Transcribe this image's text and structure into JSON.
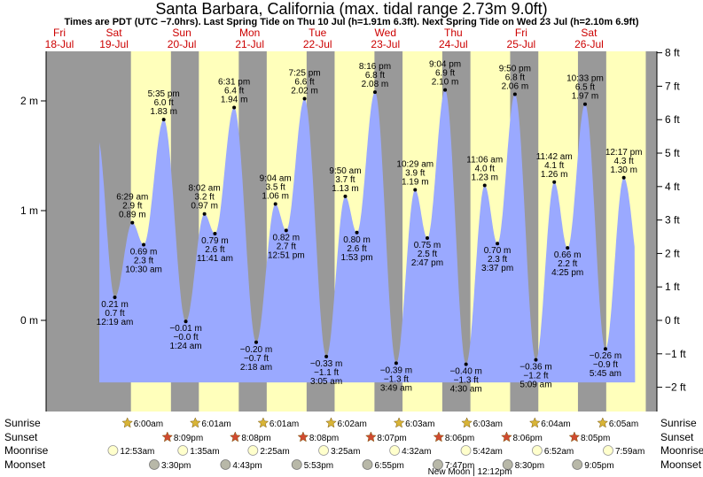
{
  "title": "Santa Barbara, California (max. tidal range 2.73m 9.0ft)",
  "subtitle": "Times are PDT (UTC −7.0hrs). Last Spring Tide on Thu 10 Jul (h=1.91m 6.3ft). Next Spring Tide on Wed 23 Jul (h=2.10m 6.9ft)",
  "colors": {
    "night": "#999999",
    "day": "#ffffbb",
    "water": "#9aa9ff",
    "date_label": "#cc0000",
    "sun_icon": "#d8b437",
    "sunset_icon": "#d04a30",
    "moonrise_icon": "#ffffcc",
    "moonset_icon": "#b8b8a8"
  },
  "row_labels": {
    "sunrise": "Sunrise",
    "sunset": "Sunset",
    "moonrise": "Moonrise",
    "moonset": "Moonset"
  },
  "moon_phase_note": "New Moon | 12:12pm",
  "chart_data": {
    "type": "area",
    "title": "Santa Barbara, California (max. tidal range 2.73m 9.0ft)",
    "y_left_unit": "m",
    "y_left_ticks": [
      "2 m",
      "1 m",
      "0 m"
    ],
    "y_right_ticks": [
      "8 ft",
      "7 ft",
      "6 ft",
      "5 ft",
      "4 ft",
      "3 ft",
      "2 ft",
      "1 ft",
      "0 ft",
      "−1 ft",
      "−2 ft"
    ],
    "y_right_values": [
      8,
      7,
      6,
      5,
      4,
      3,
      2,
      1,
      0,
      -1,
      -2
    ],
    "ylim_m": [
      -0.8,
      2.5
    ],
    "x_unit": "hours since 18-Jul 00:00 PDT",
    "xlim_hours": [
      0,
      216
    ],
    "days": [
      {
        "dow": "Fri",
        "date": "18-Jul"
      },
      {
        "dow": "Sat",
        "date": "19-Jul"
      },
      {
        "dow": "Sun",
        "date": "20-Jul"
      },
      {
        "dow": "Mon",
        "date": "21-Jul"
      },
      {
        "dow": "Tue",
        "date": "22-Jul"
      },
      {
        "dow": "Wed",
        "date": "23-Jul"
      },
      {
        "dow": "Thu",
        "date": "24-Jul"
      },
      {
        "dow": "Fri",
        "date": "25-Jul"
      },
      {
        "dow": "Sat",
        "date": "26-Jul"
      }
    ],
    "series": [
      {
        "points": [
          {
            "time": "19-Jul 00:19",
            "t": 24.3,
            "m": 0.21,
            "label": [
              "0.21 m",
              "0.7 ft",
              "12:19 am"
            ],
            "pos": "below"
          },
          {
            "time": "19-Jul 06:29",
            "t": 30.5,
            "m": 0.89,
            "label": [
              "6:29 am",
              "2.9 ft",
              "0.89 m"
            ],
            "pos": "above"
          },
          {
            "time": "19-Jul 10:30",
            "t": 34.5,
            "m": 0.69,
            "label": [
              "0.69 m",
              "2.3 ft",
              "10:30 am"
            ],
            "pos": "below"
          },
          {
            "time": "19-Jul 17:35",
            "t": 41.6,
            "m": 1.83,
            "label": [
              "5:35 pm",
              "6.0 ft",
              "1.83 m"
            ],
            "pos": "above"
          },
          {
            "time": "20-Jul 01:24",
            "t": 49.4,
            "m": -0.01,
            "label": [
              "−0.01 m",
              "−0.0 ft",
              "1:24 am"
            ],
            "pos": "below"
          },
          {
            "time": "20-Jul 08:02",
            "t": 56.0,
            "m": 0.97,
            "label": [
              "8:02 am",
              "3.2 ft",
              "0.97 m"
            ],
            "pos": "above"
          },
          {
            "time": "20-Jul 11:41",
            "t": 59.7,
            "m": 0.79,
            "label": [
              "0.79 m",
              "2.6 ft",
              "11:41 am"
            ],
            "pos": "below"
          },
          {
            "time": "20-Jul 18:31",
            "t": 66.5,
            "m": 1.94,
            "label": [
              "6:31 pm",
              "6.4 ft",
              "1.94 m"
            ],
            "pos": "above"
          },
          {
            "time": "21-Jul 02:18",
            "t": 74.3,
            "m": -0.2,
            "label": [
              "−0.20 m",
              "−0.7 ft",
              "2:18 am"
            ],
            "pos": "below"
          },
          {
            "time": "21-Jul 09:04",
            "t": 81.1,
            "m": 1.06,
            "label": [
              "9:04 am",
              "3.5 ft",
              "1.06 m"
            ],
            "pos": "above"
          },
          {
            "time": "21-Jul 12:51",
            "t": 84.9,
            "m": 0.82,
            "label": [
              "0.82 m",
              "2.7 ft",
              "12:51 pm"
            ],
            "pos": "below"
          },
          {
            "time": "21-Jul 19:25",
            "t": 91.4,
            "m": 2.02,
            "label": [
              "7:25 pm",
              "6.6 ft",
              "2.02 m"
            ],
            "pos": "above"
          },
          {
            "time": "22-Jul 03:05",
            "t": 99.1,
            "m": -0.33,
            "label": [
              "−0.33 m",
              "−1.1 ft",
              "3:05 am"
            ],
            "pos": "below"
          },
          {
            "time": "22-Jul 09:50",
            "t": 105.8,
            "m": 1.13,
            "label": [
              "9:50 am",
              "3.7 ft",
              "1.13 m"
            ],
            "pos": "above"
          },
          {
            "time": "22-Jul 13:53",
            "t": 109.9,
            "m": 0.8,
            "label": [
              "0.80 m",
              "2.6 ft",
              "1:53 pm"
            ],
            "pos": "below"
          },
          {
            "time": "22-Jul 20:16",
            "t": 116.3,
            "m": 2.08,
            "label": [
              "8:16 pm",
              "6.8 ft",
              "2.08 m"
            ],
            "pos": "above"
          },
          {
            "time": "23-Jul 03:49",
            "t": 123.8,
            "m": -0.39,
            "label": [
              "−0.39 m",
              "−1.3 ft",
              "3:49 am"
            ],
            "pos": "below"
          },
          {
            "time": "23-Jul 10:29",
            "t": 130.5,
            "m": 1.19,
            "label": [
              "10:29 am",
              "3.9 ft",
              "1.19 m"
            ],
            "pos": "above"
          },
          {
            "time": "23-Jul 14:47",
            "t": 134.8,
            "m": 0.75,
            "label": [
              "0.75 m",
              "2.5 ft",
              "2:47 pm"
            ],
            "pos": "below"
          },
          {
            "time": "23-Jul 21:04",
            "t": 141.1,
            "m": 2.1,
            "label": [
              "9:04 pm",
              "6.9 ft",
              "2.10 m"
            ],
            "pos": "above"
          },
          {
            "time": "24-Jul 04:30",
            "t": 148.5,
            "m": -0.4,
            "label": [
              "−0.40 m",
              "−1.3 ft",
              "4:30 am"
            ],
            "pos": "below"
          },
          {
            "time": "24-Jul 11:06",
            "t": 155.1,
            "m": 1.23,
            "label": [
              "11:06 am",
              "4.0 ft",
              "1.23 m"
            ],
            "pos": "above"
          },
          {
            "time": "24-Jul 15:37",
            "t": 159.6,
            "m": 0.7,
            "label": [
              "0.70 m",
              "2.3 ft",
              "3:37 pm"
            ],
            "pos": "below"
          },
          {
            "time": "24-Jul 21:50",
            "t": 165.8,
            "m": 2.06,
            "label": [
              "9:50 pm",
              "6.8 ft",
              "2.06 m"
            ],
            "pos": "above"
          },
          {
            "time": "25-Jul 05:09",
            "t": 173.2,
            "m": -0.36,
            "label": [
              "−0.36 m",
              "−1.2 ft",
              "5:09 am"
            ],
            "pos": "below"
          },
          {
            "time": "25-Jul 11:42",
            "t": 179.7,
            "m": 1.26,
            "label": [
              "11:42 am",
              "4.1 ft",
              "1.26 m"
            ],
            "pos": "above"
          },
          {
            "time": "25-Jul 16:25",
            "t": 184.4,
            "m": 0.66,
            "label": [
              "0.66 m",
              "2.2 ft",
              "4:25 pm"
            ],
            "pos": "below"
          },
          {
            "time": "25-Jul 22:33",
            "t": 190.6,
            "m": 1.97,
            "label": [
              "10:33 pm",
              "6.5 ft",
              "1.97 m"
            ],
            "pos": "above"
          },
          {
            "time": "26-Jul 05:45",
            "t": 197.8,
            "m": -0.26,
            "label": [
              "−0.26 m",
              "−0.9 ft",
              "5:45 am"
            ],
            "pos": "below"
          },
          {
            "time": "26-Jul 12:17",
            "t": 204.3,
            "m": 1.3,
            "label": [
              "12:17 pm",
              "4.3 ft",
              "1.30 m"
            ],
            "pos": "above"
          }
        ]
      }
    ],
    "sun_events": [
      {
        "day": 1,
        "rise": "6:00am",
        "set": "8:09pm",
        "rise_t": 30.0,
        "set_t": 44.15
      },
      {
        "day": 2,
        "rise": "6:01am",
        "set": "8:08pm",
        "rise_t": 54.02,
        "set_t": 68.13
      },
      {
        "day": 3,
        "rise": "6:01am",
        "set": "8:08pm",
        "rise_t": 78.02,
        "set_t": 92.13
      },
      {
        "day": 4,
        "rise": "6:02am",
        "set": "8:07pm",
        "rise_t": 102.03,
        "set_t": 116.12
      },
      {
        "day": 5,
        "rise": "6:03am",
        "set": "8:06pm",
        "rise_t": 126.05,
        "set_t": 140.1
      },
      {
        "day": 6,
        "rise": "6:03am",
        "set": "8:06pm",
        "rise_t": 150.05,
        "set_t": 164.1
      },
      {
        "day": 7,
        "rise": "6:04am",
        "set": "8:05pm",
        "rise_t": 174.07,
        "set_t": 188.08
      },
      {
        "day": 8,
        "rise": "6:05am",
        "set": "",
        "rise_t": 198.08,
        "set_t": 212.07
      }
    ],
    "moonrise": [
      {
        "label": "12:53am",
        "t": 24.9
      },
      {
        "label": "1:35am",
        "t": 49.6
      },
      {
        "label": "2:25am",
        "t": 74.4
      },
      {
        "label": "3:25am",
        "t": 99.4
      },
      {
        "label": "4:32am",
        "t": 124.5
      },
      {
        "label": "5:42am",
        "t": 149.7
      },
      {
        "label": "6:52am",
        "t": 174.9
      },
      {
        "label": "7:59am",
        "t": 200.0
      }
    ],
    "moonset": [
      {
        "label": "3:30pm",
        "t": 39.5
      },
      {
        "label": "4:43pm",
        "t": 64.7
      },
      {
        "label": "5:53pm",
        "t": 89.9
      },
      {
        "label": "6:55pm",
        "t": 114.9
      },
      {
        "label": "7:47pm",
        "t": 139.8
      },
      {
        "label": "8:30pm",
        "t": 164.5
      },
      {
        "label": "9:05pm",
        "t": 189.1
      }
    ],
    "grid": false,
    "legend": "none"
  }
}
